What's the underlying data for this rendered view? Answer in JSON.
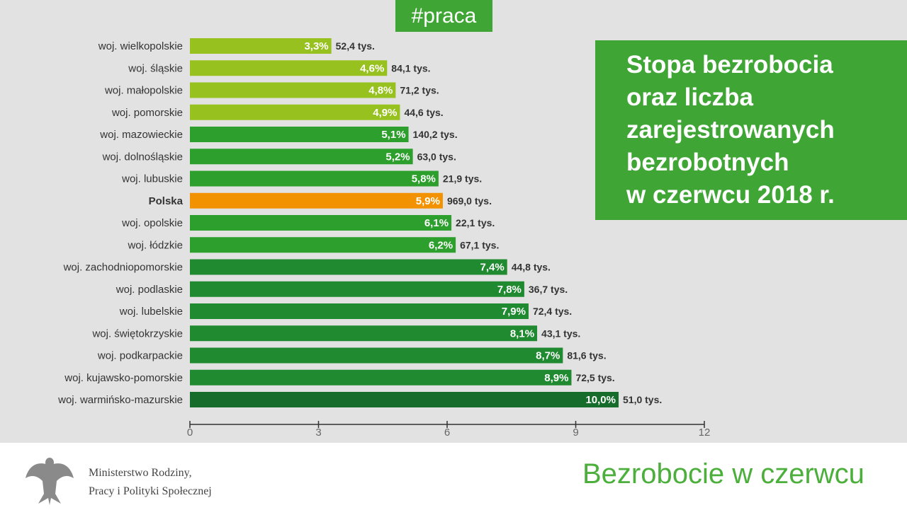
{
  "tag": "#praca",
  "title_lines": [
    "Stopa bezrobocia",
    "oraz liczba",
    "zarejestrowanych",
    "bezrobotnych",
    "w czerwcu 2018 r."
  ],
  "footer": {
    "org_line1": "Ministerstwo Rodziny,",
    "org_line2": "Pracy i Polityki Społecznej",
    "title": "Bezrobocie w czerwcu"
  },
  "colors": {
    "light": "#97c11f",
    "mid": "#2c9f2c",
    "dark": "#1f8a30",
    "darkest": "#156c2b",
    "highlight": "#f39200"
  },
  "chart_data": {
    "type": "bar",
    "orientation": "horizontal",
    "title": "Stopa bezrobocia oraz liczba zarejestrowanych bezrobotnych w czerwcu 2018 r.",
    "xlim": [
      0,
      12
    ],
    "xticks": [
      0,
      3,
      6,
      9,
      12
    ],
    "grid": false,
    "categories": [
      "woj. wielkopolskie",
      "woj. śląskie",
      "woj. małopolskie",
      "woj. pomorskie",
      "woj. mazowieckie",
      "woj. dolnośląskie",
      "woj. lubuskie",
      "Polska",
      "woj. opolskie",
      "woj. łódzkie",
      "woj. zachodniopomorskie",
      "woj. podlaskie",
      "woj. lubelskie",
      "woj. świętokrzyskie",
      "woj. podkarpackie",
      "woj. kujawsko-pomorskie",
      "woj. warmińsko-mazurskie"
    ],
    "values": [
      3.3,
      4.6,
      4.8,
      4.9,
      5.1,
      5.2,
      5.8,
      5.9,
      6.1,
      6.2,
      7.4,
      7.8,
      7.9,
      8.1,
      8.7,
      8.9,
      10.0
    ],
    "value_labels": [
      "3,3%",
      "4,6%",
      "4,8%",
      "4,9%",
      "5,1%",
      "5,2%",
      "5,8%",
      "5,9%",
      "6,1%",
      "6,2%",
      "7,4%",
      "7,8%",
      "7,9%",
      "8,1%",
      "8,7%",
      "8,9%",
      "10,0%"
    ],
    "counts": [
      "52,4 tys.",
      "84,1 tys.",
      "71,2 tys.",
      "44,6 tys.",
      "140,2 tys.",
      "63,0 tys.",
      "21,9 tys.",
      "969,0 tys.",
      "22,1 tys.",
      "67,1 tys.",
      "44,8 tys.",
      "36,7 tys.",
      "72,4 tys.",
      "43,1 tys.",
      "81,6 tys.",
      "72,5 tys.",
      "51,0 tys."
    ],
    "color_groups": [
      "light",
      "light",
      "light",
      "light",
      "mid",
      "mid",
      "mid",
      "highlight",
      "mid",
      "mid",
      "dark",
      "dark",
      "dark",
      "dark",
      "dark",
      "dark",
      "darkest"
    ]
  }
}
